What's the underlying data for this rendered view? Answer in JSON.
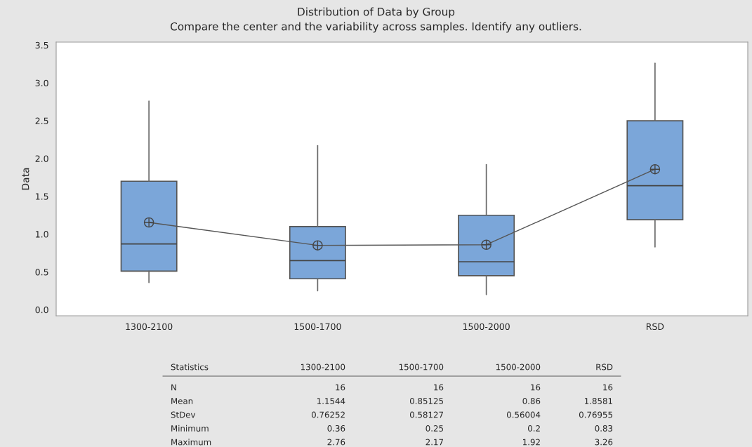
{
  "chart_data": {
    "type": "box",
    "title": "Distribution of Data by Group",
    "subtitle": "Compare the center and the variability across samples. Identify any outliers.",
    "ylabel": "Data",
    "categories": [
      "1300-2100",
      "1500-1700",
      "1500-2000",
      "RSD"
    ],
    "boxes": [
      {
        "low": 0.36,
        "q1": 0.51,
        "median": 0.87,
        "q3": 1.7,
        "high": 2.76,
        "mean": 1.1544
      },
      {
        "low": 0.25,
        "q1": 0.41,
        "median": 0.65,
        "q3": 1.1,
        "high": 2.17,
        "mean": 0.85125
      },
      {
        "low": 0.2,
        "q1": 0.45,
        "median": 0.635,
        "q3": 1.25,
        "high": 1.92,
        "mean": 0.86
      },
      {
        "low": 0.83,
        "q1": 1.19,
        "median": 1.64,
        "q3": 2.5,
        "high": 3.26,
        "mean": 1.8581
      }
    ],
    "color": "#7ba6d9",
    "series": [
      {
        "type": "line",
        "color": "#555555",
        "values": [
          1.1544,
          0.85125,
          0.86,
          1.8581
        ]
      }
    ],
    "ylim": [
      -0.08,
      3.54
    ],
    "yticks": [
      {
        "value": 0,
        "label": "0.0"
      },
      0.5,
      {
        "value": 1,
        "label": "1.0"
      },
      1.5,
      {
        "value": 2,
        "label": "2.0"
      },
      2.5,
      {
        "value": 3,
        "label": "3.0"
      },
      3.5
    ],
    "grid": false,
    "annotations": [
      "Statistics",
      "1300-2100",
      "1500-1700",
      "1500-2000",
      "RSD",
      "N",
      "16",
      "16",
      "16",
      "16",
      "Mean",
      "1.1544",
      "0.85125",
      "0.86",
      "1.8581",
      "StDev",
      "0.76252",
      "0.58127",
      "0.56004",
      "0.76955",
      "Minimum",
      "0.36",
      "0.25",
      "0.2",
      "0.83",
      "Maximum",
      "2.76",
      "2.17",
      "1.92",
      "3.26"
    ]
  }
}
